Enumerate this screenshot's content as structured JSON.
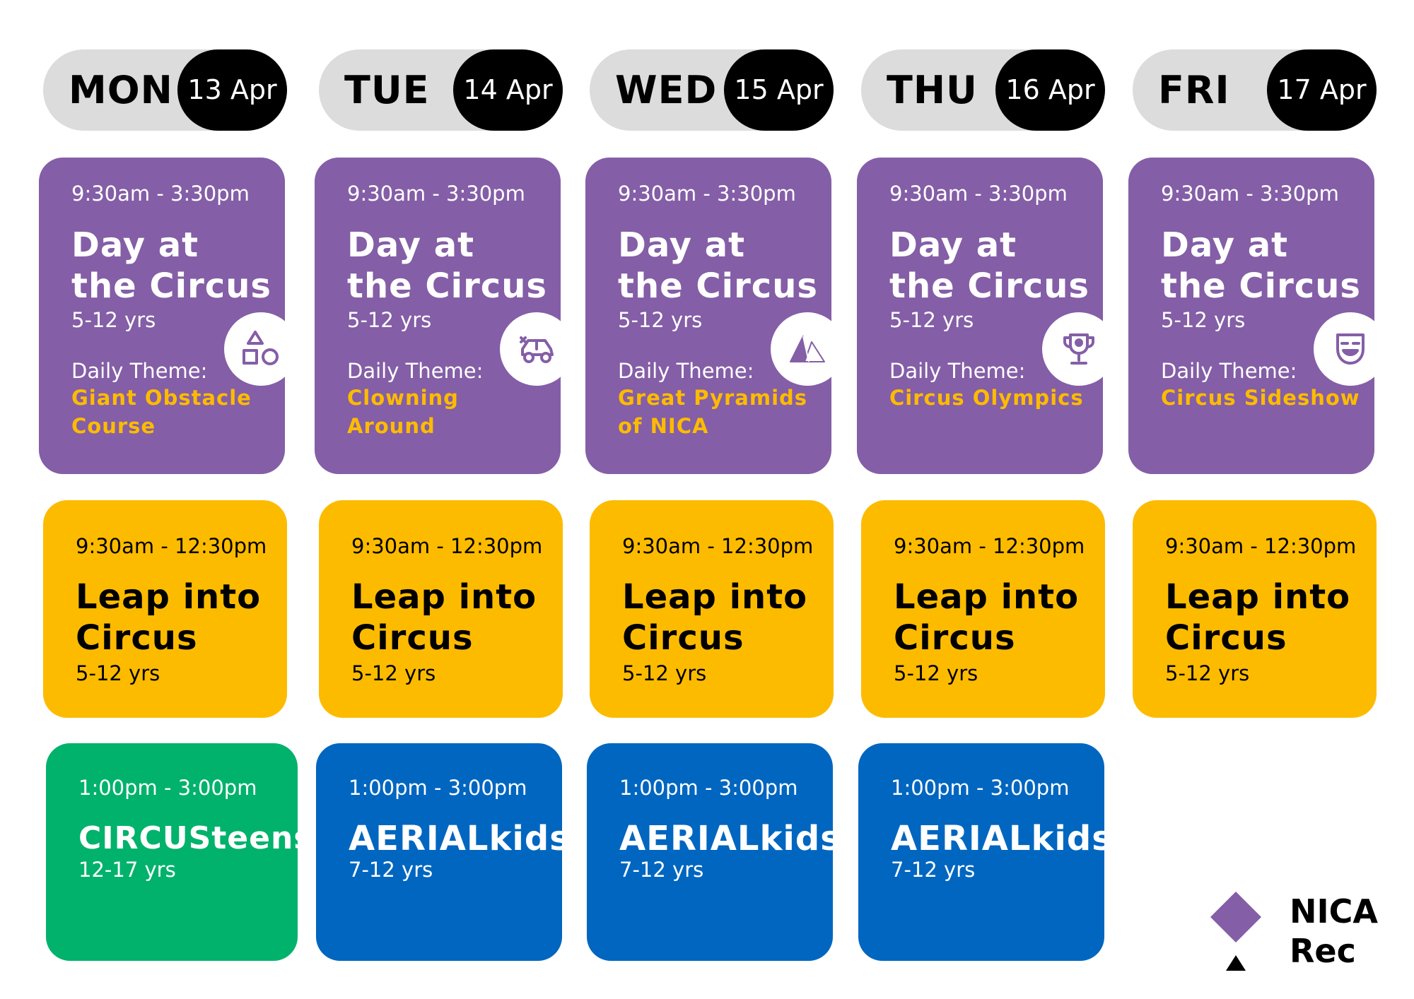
{
  "days": [
    {
      "name": "MON",
      "date": "13 Apr",
      "morning": {
        "time": "9:30am - 3:30pm",
        "title_line1": "Day at",
        "title_line2": "the Circus",
        "age": "5-12 yrs",
        "theme_label": "Daily Theme:",
        "theme": "Giant Obstacle Course",
        "icon": "shapes-icon"
      },
      "midday": {
        "time": "9:30am - 12:30pm",
        "title_line1": "Leap into",
        "title_line2": "Circus",
        "age": "5-12 yrs"
      },
      "afternoon": {
        "time": "1:00pm - 3:00pm",
        "title": "CIRCUSteens",
        "age": "12-17 yrs",
        "color": "#00b26b"
      }
    },
    {
      "name": "TUE",
      "date": "14 Apr",
      "morning": {
        "time": "9:30am - 3:30pm",
        "title_line1": "Day at",
        "title_line2": "the Circus",
        "age": "5-12 yrs",
        "theme_label": "Daily Theme:",
        "theme": "Clowning Around",
        "icon": "clown-car-icon"
      },
      "midday": {
        "time": "9:30am - 12:30pm",
        "title_line1": "Leap into",
        "title_line2": "Circus",
        "age": "5-12 yrs"
      },
      "afternoon": {
        "time": "1:00pm - 3:00pm",
        "title": "AERIALkids",
        "age": "7-12 yrs",
        "color": "#0066c0"
      }
    },
    {
      "name": "WED",
      "date": "15 Apr",
      "morning": {
        "time": "9:30am - 3:30pm",
        "title_line1": "Day at",
        "title_line2": "the Circus",
        "age": "5-12 yrs",
        "theme_label": "Daily Theme:",
        "theme": "Great Pyramids of NICA",
        "icon": "pyramid-icon"
      },
      "midday": {
        "time": "9:30am - 12:30pm",
        "title_line1": "Leap into",
        "title_line2": "Circus",
        "age": "5-12 yrs"
      },
      "afternoon": {
        "time": "1:00pm - 3:00pm",
        "title": "AERIALkids",
        "age": "7-12 yrs",
        "color": "#0066c0"
      }
    },
    {
      "name": "THU",
      "date": "16 Apr",
      "morning": {
        "time": "9:30am - 3:30pm",
        "title_line1": "Day at",
        "title_line2": "the Circus",
        "age": "5-12 yrs",
        "theme_label": "Daily Theme:",
        "theme": "Circus Olympics",
        "icon": "trophy-icon"
      },
      "midday": {
        "time": "9:30am - 12:30pm",
        "title_line1": "Leap into",
        "title_line2": "Circus",
        "age": "5-12 yrs"
      },
      "afternoon": {
        "time": "1:00pm - 3:00pm",
        "title": "AERIALkids",
        "age": "7-12 yrs",
        "color": "#0066c0"
      }
    },
    {
      "name": "FRI",
      "date": "17 Apr",
      "morning": {
        "time": "9:30am - 3:30pm",
        "title_line1": "Day at",
        "title_line2": "the Circus",
        "age": "5-12 yrs",
        "theme_label": "Daily Theme:",
        "theme": "Circus Sideshow",
        "icon": "theatre-mask-icon"
      },
      "midday": {
        "time": "9:30am - 12:30pm",
        "title_line1": "Leap into",
        "title_line2": "Circus",
        "age": "5-12 yrs"
      }
    }
  ],
  "colors": {
    "purple": "#845ea6",
    "yellow": "#fdbb00",
    "green": "#00b26b",
    "blue": "#0066c0",
    "pill": "#dcdcdc",
    "black": "#000000"
  },
  "logo": {
    "line1": "NICA",
    "line2": "Rec"
  }
}
